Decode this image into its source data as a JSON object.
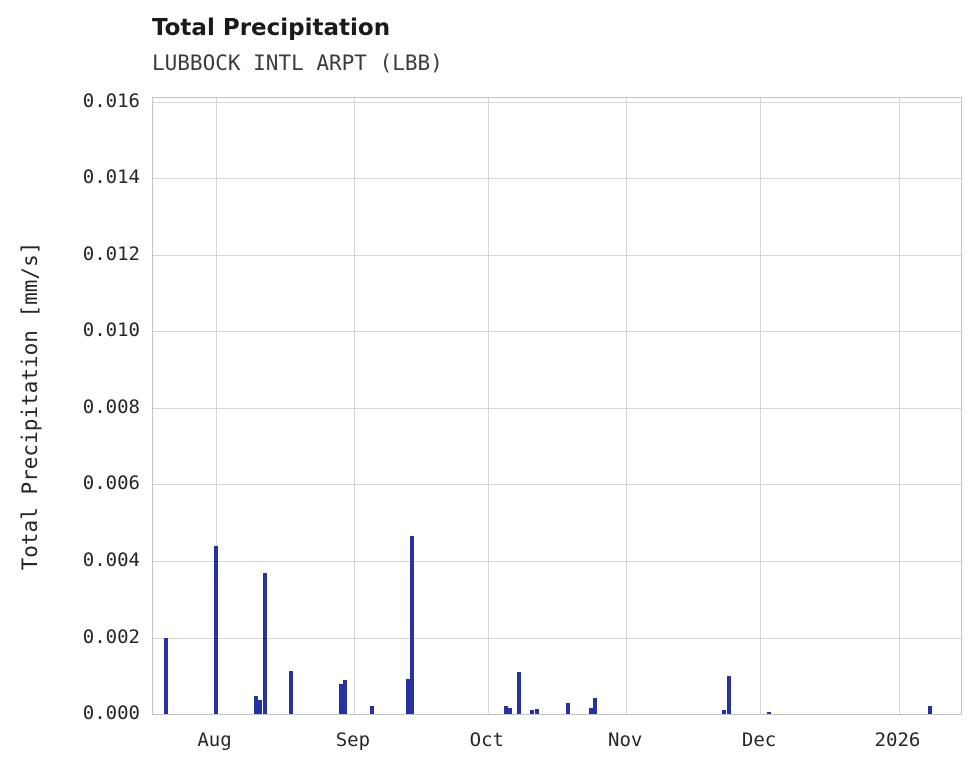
{
  "chart_data": {
    "type": "bar",
    "title": "Total Precipitation",
    "subtitle": "LUBBOCK INTL ARPT (LBB)",
    "ylabel": "Total Precipitation [mm/s]",
    "xlabel": "",
    "bar_color": "#2632a0",
    "grid": true,
    "legend": "none",
    "ylim": [
      0,
      0.0161
    ],
    "x_range": [
      "2025-07-18",
      "2026-01-15"
    ],
    "y_ticks": [
      {
        "value": 0.0,
        "label": "0.000"
      },
      {
        "value": 0.002,
        "label": "0.002"
      },
      {
        "value": 0.004,
        "label": "0.004"
      },
      {
        "value": 0.006,
        "label": "0.006"
      },
      {
        "value": 0.008,
        "label": "0.008"
      },
      {
        "value": 0.01,
        "label": "0.010"
      },
      {
        "value": 0.012,
        "label": "0.012"
      },
      {
        "value": 0.014,
        "label": "0.014"
      },
      {
        "value": 0.016,
        "label": "0.016"
      }
    ],
    "x_ticks": [
      {
        "date": "2025-08-01",
        "label": "Aug"
      },
      {
        "date": "2025-09-01",
        "label": "Sep"
      },
      {
        "date": "2025-10-01",
        "label": "Oct"
      },
      {
        "date": "2025-11-01",
        "label": "Nov"
      },
      {
        "date": "2025-12-01",
        "label": "Dec"
      },
      {
        "date": "2026-01-01",
        "label": "2026"
      }
    ],
    "points": [
      {
        "date": "2025-07-21",
        "value": 0.002
      },
      {
        "date": "2025-08-01",
        "value": 0.0044
      },
      {
        "date": "2025-08-10",
        "value": 0.00047
      },
      {
        "date": "2025-08-11",
        "value": 0.00038
      },
      {
        "date": "2025-08-12",
        "value": 0.00368
      },
      {
        "date": "2025-08-18",
        "value": 0.00112
      },
      {
        "date": "2025-08-29",
        "value": 0.00078
      },
      {
        "date": "2025-08-30",
        "value": 0.00088
      },
      {
        "date": "2025-09-05",
        "value": 0.00022
      },
      {
        "date": "2025-09-13",
        "value": 0.00092
      },
      {
        "date": "2025-09-14",
        "value": 0.00466
      },
      {
        "date": "2025-10-05",
        "value": 0.00022
      },
      {
        "date": "2025-10-06",
        "value": 0.00016
      },
      {
        "date": "2025-10-08",
        "value": 0.0011
      },
      {
        "date": "2025-10-11",
        "value": 0.0001
      },
      {
        "date": "2025-10-12",
        "value": 0.00014
      },
      {
        "date": "2025-10-19",
        "value": 0.00028
      },
      {
        "date": "2025-10-24",
        "value": 0.00016
      },
      {
        "date": "2025-10-25",
        "value": 0.00042
      },
      {
        "date": "2025-11-23",
        "value": 0.0001
      },
      {
        "date": "2025-11-24",
        "value": 0.001
      },
      {
        "date": "2025-12-03",
        "value": 6e-05
      },
      {
        "date": "2026-01-08",
        "value": 0.00022
      }
    ]
  }
}
